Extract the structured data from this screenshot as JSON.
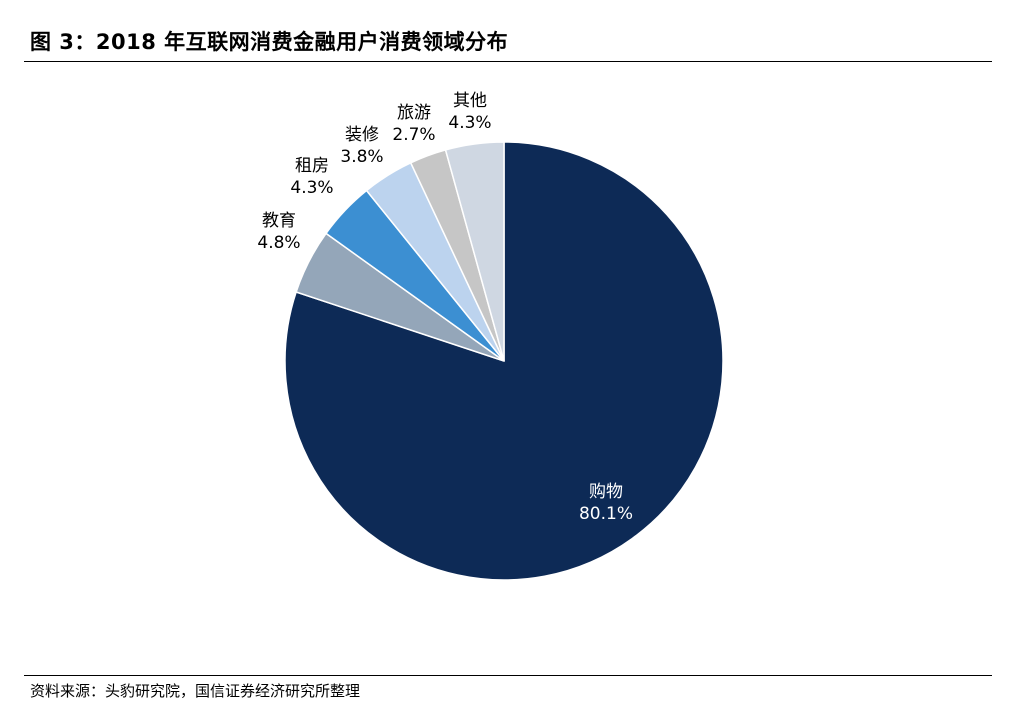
{
  "title": "图 3：2018 年互联网消费金融用户消费领域分布",
  "source": "资料来源：头豹研究院，国信证券经济研究所整理",
  "chart_data": {
    "type": "pie",
    "categories": [
      "购物",
      "教育",
      "租房",
      "装修",
      "旅游",
      "其他"
    ],
    "values": [
      80.1,
      4.8,
      4.3,
      3.8,
      2.7,
      4.3
    ],
    "value_labels": [
      "80.1%",
      "4.8%",
      "4.3%",
      "3.8%",
      "2.7%",
      "4.3%"
    ],
    "colors": [
      "#0d2a56",
      "#94a6b9",
      "#3c8fd2",
      "#bcd3ee",
      "#c6c6c6",
      "#cfd7e2"
    ],
    "label_colors": [
      "#ffffff",
      "#000000",
      "#000000",
      "#000000",
      "#000000",
      "#000000"
    ]
  }
}
